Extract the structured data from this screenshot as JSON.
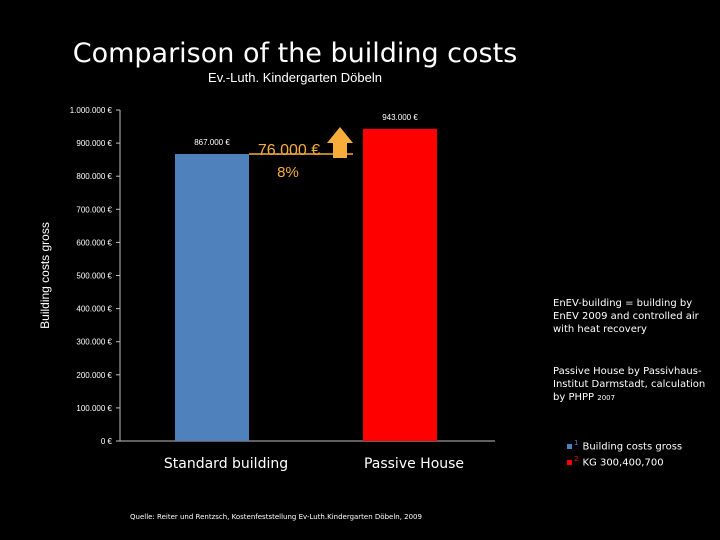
{
  "page": {
    "title": "Comparison of the building costs",
    "subtitle": "Ev.-Luth. Kindergarten Döbeln"
  },
  "chart_data": {
    "type": "bar",
    "categories": [
      "Standard building",
      "Passive House"
    ],
    "values": [
      867000,
      943000
    ],
    "data_labels": [
      "867.000 €",
      "943.000 €"
    ],
    "colors": [
      "#4f81bd",
      "#ff0000"
    ],
    "ylabel": "Building costs gross",
    "ylim": [
      0,
      1000000
    ],
    "yticks": [
      0,
      100000,
      200000,
      300000,
      400000,
      500000,
      600000,
      700000,
      800000,
      900000,
      1000000
    ],
    "ytick_labels": [
      "0 €",
      "100.000 €",
      "200.000 €",
      "300.000 €",
      "400.000 €",
      "500.000 €",
      "600.000 €",
      "700.000 €",
      "800.000 €",
      "900.000 €",
      "1.000.000 €"
    ],
    "grid": false,
    "annotation": {
      "difference": "76.000 €",
      "percent": "8%",
      "color": "#f6ad3b",
      "icon": "arrow-up-icon"
    }
  },
  "notes": {
    "enev": "EnEV-building = building by EnEV 2009 and controlled  air with heat recovery",
    "passive_main": "Passive House by Passivhaus-Institut Darmstadt, calculation by PHPP",
    "passive_year": "2007"
  },
  "legend": [
    {
      "index": "1",
      "label": "Building costs gross",
      "color": "#4f81bd"
    },
    {
      "index": "2",
      "label": "KG 300,400,700",
      "color": "#ff0000"
    }
  ],
  "source": "Quelle: Reiter und Rentzsch, Kostenfeststellung Ev-Luth.Kindergarten Döbeln,  2009"
}
